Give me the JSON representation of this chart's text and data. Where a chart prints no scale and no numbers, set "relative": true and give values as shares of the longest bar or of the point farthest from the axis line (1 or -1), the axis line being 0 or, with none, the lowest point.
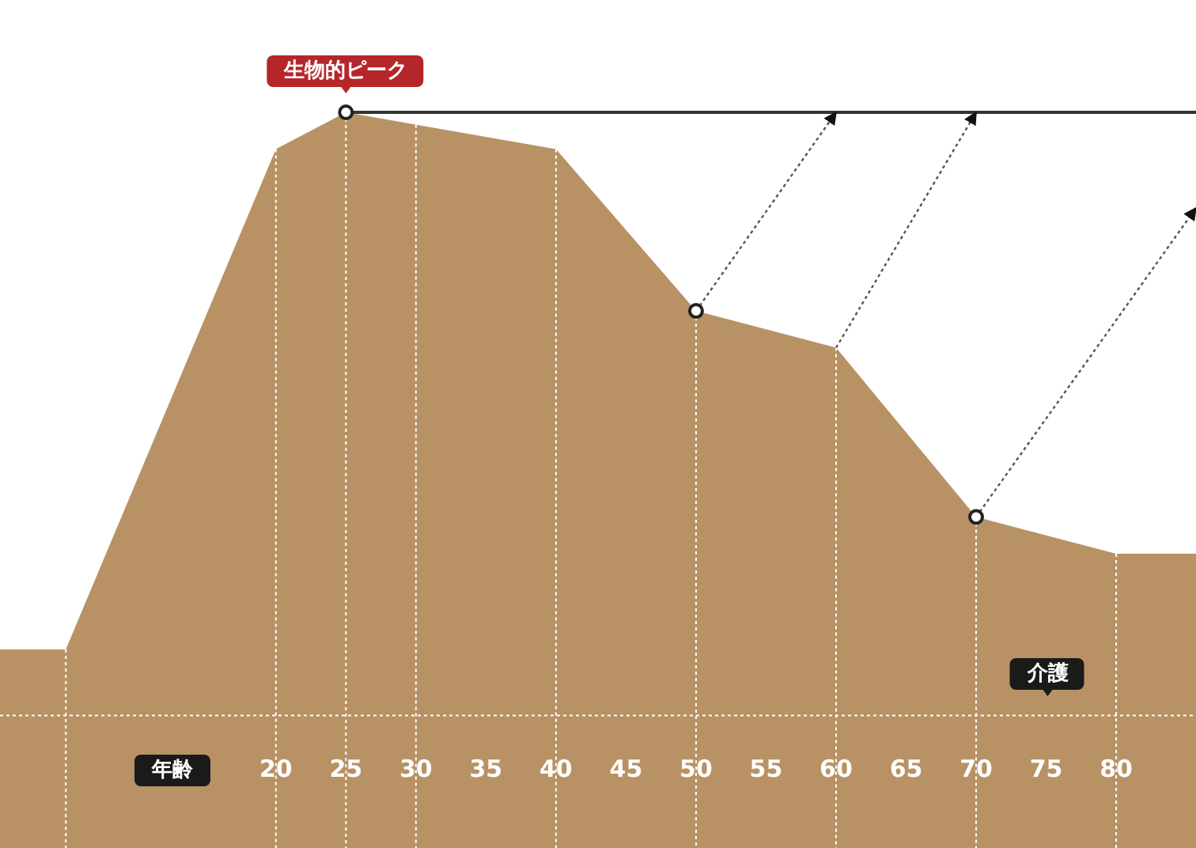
{
  "chart_data": {
    "type": "area",
    "relative": true,
    "xlabel": "年齢",
    "xlim": [
      0.3,
      85.7
    ],
    "xticks": [
      20,
      25,
      30,
      35,
      40,
      45,
      50,
      55,
      60,
      65,
      70,
      75,
      80
    ],
    "series": [
      {
        "color": "#b89265",
        "x": [
          0.3,
          5,
          20,
          25,
          40,
          50,
          60,
          70,
          80,
          85.7
        ],
        "values": [
          0.27,
          0.27,
          0.95,
          1,
          0.95,
          0.73,
          0.68,
          0.45,
          0.4,
          0.4
        ]
      },
      {
        "type": "line",
        "color": "#333333",
        "line_style": "solid",
        "x": [
          25,
          85.7
        ],
        "values": [
          1,
          1
        ]
      },
      {
        "type": "line",
        "color": "#555555",
        "line_style": "dotted",
        "x": [
          50,
          60
        ],
        "values": [
          0.73,
          1
        ]
      },
      {
        "type": "line",
        "color": "#555555",
        "line_style": "dotted",
        "x": [
          60,
          70
        ],
        "values": [
          0.68,
          1
        ]
      },
      {
        "type": "line",
        "color": "#555555",
        "line_style": "dotted",
        "x": [
          70,
          85.7
        ],
        "values": [
          0.45,
          0.87
        ]
      },
      {
        "type": "scatter",
        "color": "#222222",
        "marker": "circle",
        "x": [
          25,
          50,
          70
        ],
        "values": [
          1,
          0.73,
          0.45
        ]
      }
    ],
    "ref_lines": [
      {
        "axis": "x",
        "value": 5,
        "color": "#ffffff",
        "line_style": "dotted"
      },
      {
        "axis": "x",
        "value": 20,
        "color": "#ffffff",
        "line_style": "dotted"
      },
      {
        "axis": "x",
        "value": 25,
        "color": "#ffffff",
        "line_style": "dotted"
      },
      {
        "axis": "x",
        "value": 30,
        "color": "#ffffff",
        "line_style": "dotted"
      },
      {
        "axis": "x",
        "value": 40,
        "color": "#ffffff",
        "line_style": "dotted"
      },
      {
        "axis": "x",
        "value": 50,
        "color": "#ffffff",
        "line_style": "dotted"
      },
      {
        "axis": "x",
        "value": 60,
        "color": "#ffffff",
        "line_style": "dotted"
      },
      {
        "axis": "x",
        "value": 70,
        "color": "#ffffff",
        "line_style": "dotted"
      },
      {
        "axis": "x",
        "value": 80,
        "color": "#ffffff",
        "line_style": "dotted"
      },
      {
        "axis": "y",
        "value": 0.18,
        "color": "#ffffff",
        "line_style": "dotted"
      }
    ],
    "annotations": [
      {
        "text": "生物的ピーク",
        "x": 25,
        "y": 1
      },
      "介護"
    ]
  }
}
